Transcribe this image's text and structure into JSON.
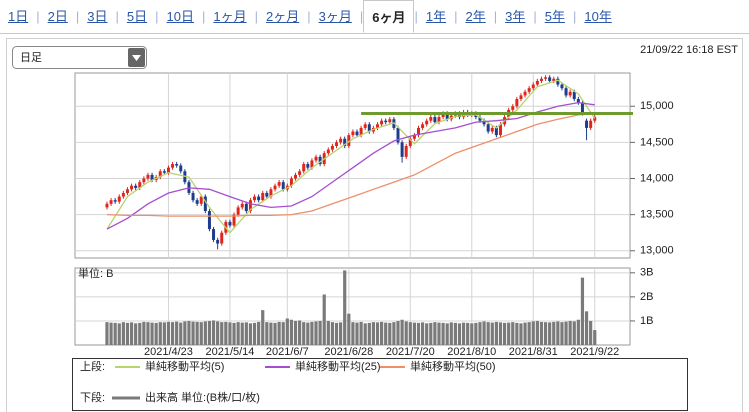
{
  "ui": {
    "tabs": [
      "1日",
      "2日",
      "3日",
      "5日",
      "10日",
      "1ヶ月",
      "2ヶ月",
      "3ヶ月",
      "6ヶ月",
      "1年",
      "2年",
      "3年",
      "5年",
      "10年"
    ],
    "active_tab": 8,
    "interval": "日足",
    "timestamp": "21/09/22 16:18 EST"
  },
  "chart_data": [
    {
      "type": "candlestick",
      "xlim": [
        -7.8,
        127.6
      ],
      "ylim": [
        12900,
        15460
      ],
      "yticks": [
        {
          "value": 13000,
          "label": "13,000"
        },
        {
          "value": 13500,
          "label": "13,500"
        },
        {
          "value": 14000,
          "label": "14,000"
        },
        {
          "value": 14500,
          "label": "14,500"
        },
        {
          "value": 15000,
          "label": "15,000"
        }
      ],
      "up_color": "#e0261c",
      "down_color": "#1c3c8e",
      "legend_label": "上段:",
      "candles": [
        [
          13600,
          13680,
          13570,
          13650
        ],
        [
          13650,
          13730,
          13620,
          13700
        ],
        [
          13700,
          13730,
          13650,
          13680
        ],
        [
          13680,
          13780,
          13650,
          13750
        ],
        [
          13750,
          13830,
          13720,
          13800
        ],
        [
          13800,
          13880,
          13770,
          13850
        ],
        [
          13850,
          13930,
          13820,
          13900
        ],
        [
          13900,
          13930,
          13840,
          13870
        ],
        [
          13870,
          13980,
          13840,
          13950
        ],
        [
          13950,
          14030,
          13920,
          14000
        ],
        [
          14000,
          14080,
          13970,
          14050
        ],
        [
          14050,
          14080,
          13950,
          13980
        ],
        [
          13980,
          14050,
          13950,
          14020
        ],
        [
          14020,
          14130,
          13990,
          14100
        ],
        [
          14100,
          14130,
          14050,
          14080
        ],
        [
          14080,
          14180,
          14050,
          14150
        ],
        [
          14150,
          14230,
          14120,
          14200
        ],
        [
          14200,
          14230,
          14150,
          14180
        ],
        [
          14180,
          14210,
          14070,
          14100
        ],
        [
          14100,
          14130,
          13920,
          13950
        ],
        [
          13950,
          13980,
          13770,
          13800
        ],
        [
          13800,
          13830,
          13670,
          13700
        ],
        [
          13700,
          13730,
          13620,
          13650
        ],
        [
          13650,
          13780,
          13620,
          13750
        ],
        [
          13750,
          13780,
          13520,
          13550
        ],
        [
          13550,
          13580,
          13270,
          13300
        ],
        [
          13300,
          13330,
          13120,
          13150
        ],
        [
          13150,
          13180,
          13020,
          13100
        ],
        [
          13100,
          13280,
          13070,
          13250
        ],
        [
          13250,
          13430,
          13220,
          13400
        ],
        [
          13400,
          13430,
          13320,
          13350
        ],
        [
          13350,
          13530,
          13320,
          13500
        ],
        [
          13500,
          13630,
          13470,
          13600
        ],
        [
          13600,
          13680,
          13570,
          13650
        ],
        [
          13650,
          13680,
          13520,
          13550
        ],
        [
          13550,
          13730,
          13520,
          13700
        ],
        [
          13700,
          13780,
          13670,
          13750
        ],
        [
          13750,
          13780,
          13670,
          13700
        ],
        [
          13700,
          13830,
          13670,
          13800
        ],
        [
          13800,
          13830,
          13720,
          13750
        ],
        [
          13750,
          13880,
          13720,
          13850
        ],
        [
          13850,
          13930,
          13820,
          13900
        ],
        [
          13900,
          13980,
          13870,
          13950
        ],
        [
          13950,
          13980,
          13820,
          13850
        ],
        [
          13850,
          13930,
          13820,
          13900
        ],
        [
          13900,
          14030,
          13870,
          14000
        ],
        [
          14000,
          14080,
          13970,
          14050
        ],
        [
          14050,
          14130,
          14020,
          14100
        ],
        [
          14100,
          14230,
          14070,
          14200
        ],
        [
          14200,
          14230,
          14120,
          14150
        ],
        [
          14150,
          14280,
          14120,
          14250
        ],
        [
          14250,
          14330,
          14220,
          14300
        ],
        [
          14300,
          14330,
          14170,
          14200
        ],
        [
          14200,
          14380,
          14170,
          14350
        ],
        [
          14350,
          14430,
          14320,
          14400
        ],
        [
          14400,
          14480,
          14370,
          14450
        ],
        [
          14450,
          14530,
          14420,
          14500
        ],
        [
          14500,
          14580,
          14470,
          14550
        ],
        [
          14550,
          14580,
          14420,
          14450
        ],
        [
          14450,
          14630,
          14420,
          14600
        ],
        [
          14600,
          14680,
          14570,
          14650
        ],
        [
          14650,
          14680,
          14570,
          14600
        ],
        [
          14600,
          14730,
          14570,
          14700
        ],
        [
          14700,
          14780,
          14670,
          14750
        ],
        [
          14750,
          14780,
          14620,
          14650
        ],
        [
          14650,
          14730,
          14620,
          14700
        ],
        [
          14700,
          14780,
          14670,
          14750
        ],
        [
          14750,
          14830,
          14720,
          14800
        ],
        [
          14800,
          14830,
          14750,
          14780
        ],
        [
          14780,
          14850,
          14750,
          14820
        ],
        [
          14820,
          14850,
          14670,
          14700
        ],
        [
          14700,
          14730,
          14470,
          14500
        ],
        [
          14500,
          14530,
          14220,
          14300
        ],
        [
          14300,
          14480,
          14270,
          14450
        ],
        [
          14450,
          14580,
          14420,
          14550
        ],
        [
          14550,
          14630,
          14520,
          14600
        ],
        [
          14600,
          14730,
          14570,
          14700
        ],
        [
          14700,
          14780,
          14670,
          14750
        ],
        [
          14750,
          14830,
          14720,
          14800
        ],
        [
          14800,
          14880,
          14770,
          14850
        ],
        [
          14850,
          14880,
          14750,
          14780
        ],
        [
          14780,
          14880,
          14750,
          14850
        ],
        [
          14850,
          14930,
          14820,
          14900
        ],
        [
          14900,
          14930,
          14790,
          14820
        ],
        [
          14820,
          14900,
          14790,
          14870
        ],
        [
          14870,
          14930,
          14840,
          14900
        ],
        [
          14900,
          14930,
          14820,
          14850
        ],
        [
          14850,
          14950,
          14820,
          14920
        ],
        [
          14920,
          14950,
          14850,
          14880
        ],
        [
          14880,
          14930,
          14850,
          14900
        ],
        [
          14900,
          14930,
          14820,
          14850
        ],
        [
          14850,
          14880,
          14770,
          14800
        ],
        [
          14800,
          14830,
          14720,
          14750
        ],
        [
          14750,
          14780,
          14620,
          14650
        ],
        [
          14650,
          14730,
          14620,
          14700
        ],
        [
          14700,
          14730,
          14570,
          14600
        ],
        [
          14600,
          14780,
          14570,
          14750
        ],
        [
          14750,
          14880,
          14720,
          14850
        ],
        [
          14850,
          14980,
          14820,
          14950
        ],
        [
          14950,
          15030,
          14920,
          15000
        ],
        [
          15000,
          15130,
          14970,
          15100
        ],
        [
          15100,
          15180,
          15070,
          15150
        ],
        [
          15150,
          15230,
          15120,
          15200
        ],
        [
          15200,
          15280,
          15170,
          15250
        ],
        [
          15250,
          15330,
          15220,
          15300
        ],
        [
          15300,
          15380,
          15270,
          15350
        ],
        [
          15350,
          15410,
          15320,
          15380
        ],
        [
          15380,
          15430,
          15350,
          15400
        ],
        [
          15400,
          15430,
          15320,
          15350
        ],
        [
          15350,
          15410,
          15320,
          15380
        ],
        [
          15380,
          15410,
          15270,
          15300
        ],
        [
          15300,
          15330,
          15220,
          15250
        ],
        [
          15250,
          15280,
          15120,
          15150
        ],
        [
          15150,
          15230,
          15120,
          15200
        ],
        [
          15200,
          15230,
          15070,
          15100
        ],
        [
          15100,
          15130,
          15020,
          15050
        ],
        [
          15050,
          15080,
          14870,
          14900
        ],
        [
          14800,
          14830,
          14530,
          14700
        ],
        [
          14700,
          14830,
          14670,
          14800
        ],
        [
          14800,
          14880,
          14770,
          14850
        ]
      ],
      "series": [
        {
          "name": "単純移動平均(5)",
          "color": "#b7d46e",
          "x": [
            0,
            5,
            10,
            15,
            20,
            25,
            30,
            35,
            40,
            45,
            50,
            55,
            60,
            65,
            70,
            75,
            80,
            85,
            90,
            95,
            100,
            105,
            110,
            115,
            119
          ],
          "values": [
            13300,
            13750,
            13950,
            14080,
            14020,
            13600,
            13250,
            13570,
            13760,
            13900,
            14150,
            14350,
            14550,
            14680,
            14770,
            14480,
            14760,
            14860,
            14880,
            14700,
            14950,
            15270,
            15360,
            15170,
            14830
          ]
        },
        {
          "name": "単純移動平均(25)",
          "color": "#a64ed0",
          "x": [
            0,
            5,
            10,
            15,
            20,
            25,
            30,
            35,
            40,
            45,
            50,
            55,
            60,
            65,
            70,
            75,
            80,
            85,
            90,
            95,
            100,
            105,
            110,
            115,
            119
          ],
          "values": [
            13300,
            13450,
            13650,
            13800,
            13870,
            13850,
            13750,
            13650,
            13600,
            13620,
            13750,
            13950,
            14150,
            14350,
            14520,
            14600,
            14650,
            14700,
            14780,
            14800,
            14830,
            14920,
            15000,
            15050,
            15020
          ]
        },
        {
          "name": "単純移動平均(50)",
          "color": "#ee8f6a",
          "x": [
            0,
            5,
            10,
            15,
            20,
            25,
            30,
            35,
            40,
            45,
            50,
            55,
            60,
            65,
            70,
            75,
            80,
            85,
            90,
            95,
            100,
            105,
            110,
            115,
            119
          ],
          "values": [
            13500,
            13490,
            13490,
            13480,
            13480,
            13480,
            13480,
            13490,
            13490,
            13500,
            13550,
            13650,
            13750,
            13850,
            13950,
            14050,
            14200,
            14350,
            14450,
            14550,
            14650,
            14750,
            14820,
            14880,
            14900
          ]
        }
      ],
      "hline": {
        "value": 14900,
        "x_start": 62,
        "color": "#6f9a2e"
      }
    },
    {
      "type": "bar",
      "name": "出来高 単位:(B株/口/枚)",
      "legend_label": "下段:",
      "unit_label": "単位: B",
      "color": "#7a7a7a",
      "xlim": [
        -7.8,
        127.6
      ],
      "ylim": [
        0,
        3.2
      ],
      "yticks": [
        {
          "value": 1,
          "label": "1B"
        },
        {
          "value": 2,
          "label": "2B"
        },
        {
          "value": 3,
          "label": "3B"
        }
      ],
      "xticks": [
        {
          "value": 15,
          "label": "2021/4/23"
        },
        {
          "value": 30,
          "label": "2021/5/14"
        },
        {
          "value": 44,
          "label": "2021/6/7"
        },
        {
          "value": 59,
          "label": "2021/6/28"
        },
        {
          "value": 74,
          "label": "2021/7/20"
        },
        {
          "value": 89,
          "label": "2021/8/10"
        },
        {
          "value": 104,
          "label": "2021/8/31"
        },
        {
          "value": 119,
          "label": "2021/9/22"
        }
      ],
      "values": [
        0.95,
        0.93,
        0.92,
        0.9,
        0.95,
        0.92,
        0.94,
        0.9,
        0.92,
        0.96,
        0.95,
        0.93,
        0.92,
        0.95,
        0.94,
        0.96,
        0.95,
        0.97,
        0.93,
        0.98,
        1.0,
        0.97,
        0.96,
        0.95,
        0.98,
        1.0,
        1.02,
        0.98,
        0.95,
        0.96,
        0.94,
        0.92,
        0.95,
        0.93,
        0.94,
        0.9,
        0.92,
        0.96,
        1.45,
        0.95,
        0.93,
        0.92,
        0.96,
        0.95,
        1.1,
        1.05,
        1.0,
        1.02,
        0.95,
        0.93,
        0.96,
        0.98,
        1.0,
        2.1,
        1.0,
        0.95,
        0.92,
        0.94,
        3.1,
        1.3,
        0.95,
        0.93,
        0.96,
        0.9,
        0.92,
        0.95,
        0.94,
        0.96,
        0.93,
        0.92,
        0.95,
        1.0,
        1.05,
        0.98,
        0.95,
        0.93,
        0.92,
        0.94,
        0.9,
        0.92,
        0.95,
        0.93,
        0.92,
        0.9,
        0.94,
        0.92,
        0.9,
        0.93,
        0.92,
        0.9,
        0.92,
        0.95,
        0.98,
        0.95,
        0.93,
        0.96,
        0.94,
        0.92,
        0.93,
        0.95,
        0.92,
        0.9,
        0.93,
        0.95,
        0.98,
        1.0,
        0.96,
        0.95,
        0.94,
        0.96,
        0.98,
        0.95,
        0.97,
        1.0,
        0.98,
        1.05,
        2.8,
        1.4,
        1.0,
        0.62
      ]
    }
  ]
}
